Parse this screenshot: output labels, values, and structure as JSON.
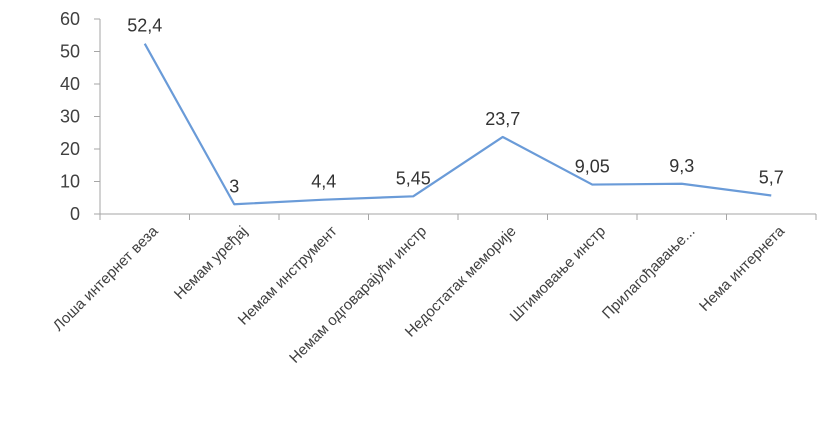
{
  "chart_data": {
    "type": "line",
    "title": "",
    "xlabel": "",
    "ylabel": "",
    "categories": [
      "Лоша интернет веза",
      "Немам уређај",
      "Немам инструмент",
      "Немам одговарајући инстр",
      "Недостатак меморије",
      "Штимовање инстр",
      "Прилагођавање...",
      "Нема интернета"
    ],
    "series": [
      {
        "values": [
          52.4,
          3,
          4.4,
          5.45,
          23.7,
          9.05,
          9.3,
          5.7
        ],
        "data_labels": [
          "52,4",
          "3",
          "4,4",
          "5,45",
          "23,7",
          "9,05",
          "9,3",
          "5,7"
        ]
      }
    ],
    "ylim": [
      0,
      60
    ],
    "yticks": [
      0,
      10,
      20,
      30,
      40,
      50,
      60
    ],
    "grid": false,
    "legend": "none",
    "line_color": "#6a9bd8",
    "axis_color": "#a6a6a6"
  }
}
